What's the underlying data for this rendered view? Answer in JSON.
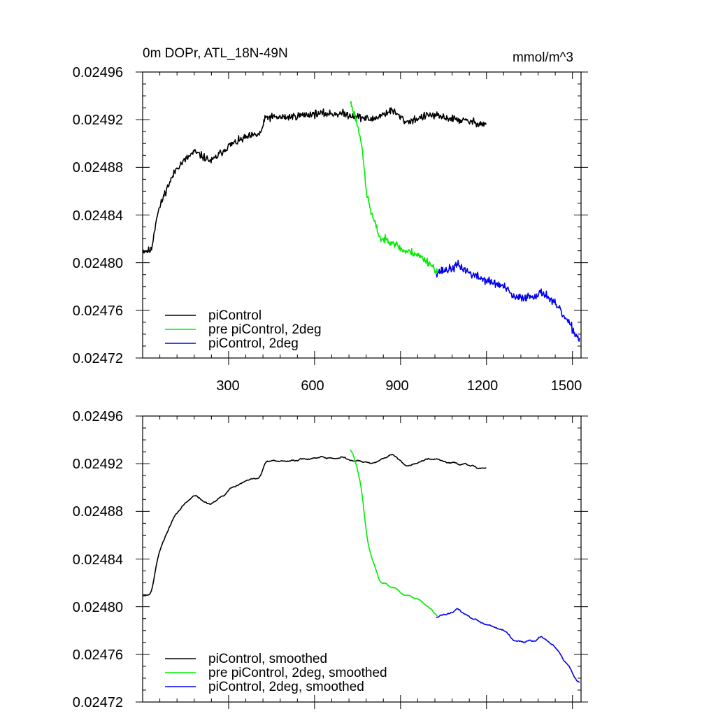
{
  "chart_data": [
    {
      "type": "line",
      "title": "0m DOPr, ATL_18N-49N",
      "units": "mmol/m^3",
      "xlim": [
        0,
        1530
      ],
      "ylim": [
        0.02472,
        0.02496
      ],
      "x_ticks": [
        "300",
        "600",
        "900",
        "1200",
        "1500"
      ],
      "y_ticks": [
        "0.02496",
        "0.02492",
        "0.02488",
        "0.02484",
        "0.02480",
        "0.02476",
        "0.02472"
      ],
      "legend": [
        {
          "label": "piControl",
          "color": "#000000"
        },
        {
          "label": "pre piControl, 2deg",
          "color": "#00ee00"
        },
        {
          "label": "piControl, 2deg",
          "color": "#0000ee"
        }
      ],
      "series": [
        {
          "name": "piControl",
          "color": "#000000",
          "x_start": 1,
          "x_end": 1200,
          "anchors": [
            [
              1,
              0.02481
            ],
            [
              30,
              0.02481
            ],
            [
              50,
              0.02484
            ],
            [
              80,
              0.02486
            ],
            [
              120,
              0.02488
            ],
            [
              180,
              0.024893
            ],
            [
              240,
              0.024885
            ],
            [
              300,
              0.024898
            ],
            [
              360,
              0.024905
            ],
            [
              410,
              0.024908
            ],
            [
              430,
              0.024922
            ],
            [
              500,
              0.024922
            ],
            [
              600,
              0.024925
            ],
            [
              700,
              0.024925
            ],
            [
              800,
              0.02492
            ],
            [
              870,
              0.024928
            ],
            [
              920,
              0.024918
            ],
            [
              1000,
              0.024924
            ],
            [
              1100,
              0.02492
            ],
            [
              1200,
              0.024916
            ]
          ],
          "noise": 1.6e-06,
          "seed": 11
        },
        {
          "name": "pre piControl, 2deg",
          "color": "#00ee00",
          "x_start": 725,
          "x_end": 1030,
          "anchors": [
            [
              725,
              0.024935
            ],
            [
              745,
              0.02492
            ],
            [
              765,
              0.0249
            ],
            [
              780,
              0.02486
            ],
            [
              800,
              0.02484
            ],
            [
              830,
              0.02482
            ],
            [
              870,
              0.024818
            ],
            [
              910,
              0.02481
            ],
            [
              950,
              0.024808
            ],
            [
              1000,
              0.0248
            ],
            [
              1030,
              0.024792
            ]
          ],
          "noise": 1.6e-06,
          "seed": 23
        },
        {
          "name": "piControl, 2deg",
          "color": "#0000ee",
          "x_start": 1025,
          "x_end": 1525,
          "anchors": [
            [
              1025,
              0.024792
            ],
            [
              1080,
              0.024795
            ],
            [
              1100,
              0.024798
            ],
            [
              1150,
              0.02479
            ],
            [
              1200,
              0.024785
            ],
            [
              1260,
              0.02478
            ],
            [
              1300,
              0.02477
            ],
            [
              1360,
              0.024772
            ],
            [
              1400,
              0.024775
            ],
            [
              1450,
              0.024762
            ],
            [
              1490,
              0.024748
            ],
            [
              1525,
              0.024735
            ]
          ],
          "noise": 1.8e-06,
          "seed": 37
        }
      ]
    },
    {
      "type": "line",
      "xlim": [
        0,
        1530
      ],
      "ylim": [
        0.02472,
        0.02496
      ],
      "y_ticks": [
        "0.02496",
        "0.02492",
        "0.02488",
        "0.02484",
        "0.02480",
        "0.02476",
        "0.02472"
      ],
      "legend": [
        {
          "label": "piControl, smoothed",
          "color": "#000000"
        },
        {
          "label": "pre piControl, 2deg, smoothed",
          "color": "#00ee00"
        },
        {
          "label": "piControl, 2deg, smoothed",
          "color": "#0000ee"
        }
      ],
      "series": [
        {
          "name": "piControl, smoothed",
          "color": "#000000",
          "x_start": 1,
          "x_end": 1200,
          "anchors": [
            [
              1,
              0.02481
            ],
            [
              30,
              0.02481
            ],
            [
              50,
              0.02484
            ],
            [
              80,
              0.02486
            ],
            [
              120,
              0.02488
            ],
            [
              180,
              0.024893
            ],
            [
              240,
              0.024885
            ],
            [
              300,
              0.024898
            ],
            [
              360,
              0.024905
            ],
            [
              410,
              0.024908
            ],
            [
              430,
              0.024922
            ],
            [
              500,
              0.024922
            ],
            [
              600,
              0.024925
            ],
            [
              700,
              0.024925
            ],
            [
              800,
              0.02492
            ],
            [
              870,
              0.024928
            ],
            [
              920,
              0.024918
            ],
            [
              1000,
              0.024924
            ],
            [
              1100,
              0.02492
            ],
            [
              1200,
              0.024916
            ]
          ],
          "noise": 1.6e-06,
          "seed": 11,
          "smooth": 4
        },
        {
          "name": "pre piControl, 2deg, smoothed",
          "color": "#00ee00",
          "x_start": 725,
          "x_end": 1030,
          "anchors": [
            [
              725,
              0.024935
            ],
            [
              745,
              0.02492
            ],
            [
              765,
              0.0249
            ],
            [
              780,
              0.02486
            ],
            [
              800,
              0.02484
            ],
            [
              830,
              0.02482
            ],
            [
              870,
              0.024818
            ],
            [
              910,
              0.02481
            ],
            [
              950,
              0.024808
            ],
            [
              1000,
              0.0248
            ],
            [
              1030,
              0.024792
            ]
          ],
          "noise": 1.6e-06,
          "seed": 23,
          "smooth": 4
        },
        {
          "name": "piControl, 2deg, smoothed",
          "color": "#0000ee",
          "x_start": 1025,
          "x_end": 1525,
          "anchors": [
            [
              1025,
              0.024792
            ],
            [
              1080,
              0.024795
            ],
            [
              1100,
              0.024798
            ],
            [
              1150,
              0.02479
            ],
            [
              1200,
              0.024785
            ],
            [
              1260,
              0.02478
            ],
            [
              1300,
              0.02477
            ],
            [
              1360,
              0.024772
            ],
            [
              1400,
              0.024775
            ],
            [
              1450,
              0.024762
            ],
            [
              1490,
              0.024748
            ],
            [
              1525,
              0.024735
            ]
          ],
          "noise": 1.8e-06,
          "seed": 37,
          "smooth": 4
        }
      ]
    }
  ]
}
